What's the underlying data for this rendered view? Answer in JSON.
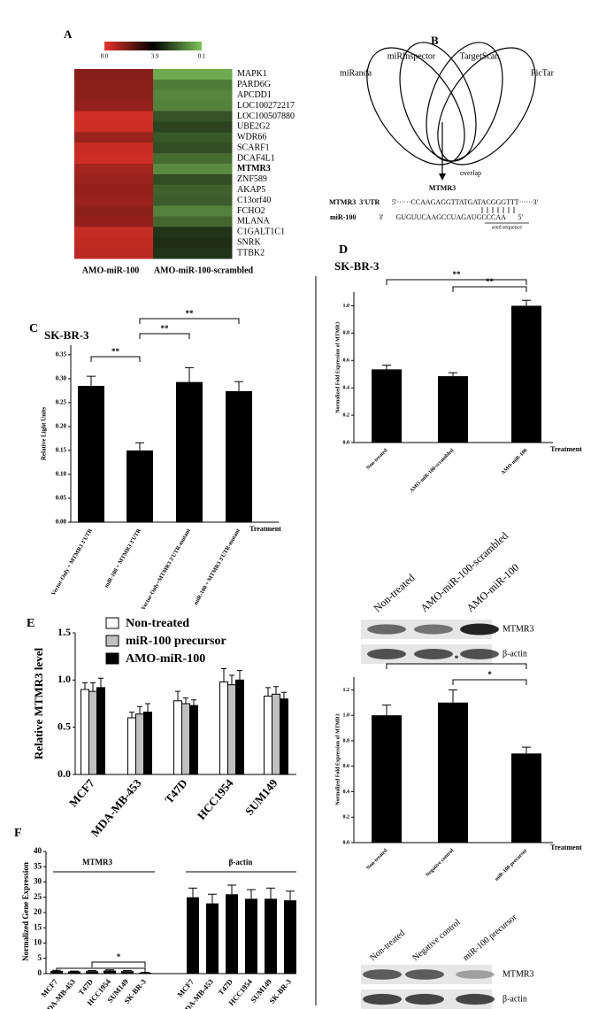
{
  "chart_data": [
    {
      "type": "heatmap",
      "panel": "A",
      "panel_color": "#000000",
      "colorbar_ticks": [
        {
          "value": 8,
          "label": "8.0"
        },
        3.9,
        0.1
      ],
      "colors": [
        "#e8332a",
        "#000000",
        "#7fc45a"
      ],
      "rows": [
        "MAPK1",
        "PARD6G",
        "APCDD1",
        "LOC100272217",
        "LOC100507880",
        "UBE2G2",
        "WDR66",
        "SCARF1",
        "DCAF4L1",
        "MTMR3",
        "ZNF589",
        "AKAP5",
        "C13orf40",
        "FCHO2",
        "MLANA",
        "C1GALT1C1",
        "SNRK",
        "TTBK2"
      ],
      "row_label_colors": [
        "#000000",
        "#000000",
        "#000000",
        "#000000",
        "#000000",
        "#000000",
        "#000000",
        "#000000",
        "#000000",
        "#e8401c",
        "#000000",
        "#000000",
        "#000000",
        "#000000",
        "#000000",
        "#000000",
        "#000000",
        "#000000"
      ],
      "columns": [
        "AMO-miR-100",
        "AMO-miR-100-scrambled"
      ],
      "values": [
        [
          6.3,
          0.6
        ],
        [
          6.4,
          1.5
        ],
        [
          6.4,
          1.3
        ],
        [
          6.5,
          1.4
        ],
        [
          7.6,
          2.3
        ],
        [
          7.5,
          2.6
        ],
        [
          6.6,
          2.2
        ],
        [
          7.4,
          2.4
        ],
        [
          7.5,
          1.8
        ],
        [
          6.8,
          1.2
        ],
        [
          6.6,
          2.4
        ],
        [
          6.5,
          2.0
        ],
        [
          6.6,
          2.1
        ],
        [
          6.4,
          1.4
        ],
        [
          6.5,
          1.9
        ],
        [
          7.4,
          2.9
        ],
        [
          7.3,
          3.0
        ],
        [
          7.2,
          2.9
        ]
      ]
    },
    {
      "type": "venn",
      "panel": "B",
      "panel_color": "#000000",
      "sets": [
        "miRanda",
        "miRInspector",
        "TargetScan",
        "PicTar"
      ],
      "intersection_label": "overlap",
      "target": "MTMR3",
      "target_name": "MTMR3  3'UTR",
      "target_seq": "5'······CCAAGAGGTTATGATACGGGTTT······3'",
      "mirna_name": "miR-100",
      "mirna_seq": "3'       GUGUUCAAGCCUAGAUGCCCAA       5'",
      "seed_label": "seed sequence"
    },
    {
      "type": "bar",
      "panel": "C",
      "panel_color": "#000000",
      "title": "SK-BR-3",
      "y_label": "Relative Light Units",
      "x_label": "Treatment",
      "categories": [
        "Vector-Only + MTMR3 3'UTR",
        "miR-100 + MTMR3 3'UTR",
        "Vector-Only+MTMR3 3'UTR-mutant",
        "miR-100 + MTMR3 3'UTR-mutant"
      ],
      "values": [
        0.285,
        0.15,
        0.293,
        0.274
      ],
      "errors": [
        0.02,
        0.016,
        0.03,
        0.02
      ],
      "color": "#000000",
      "ylim": [
        0,
        0.37
      ],
      "yticks": [
        {
          "value": 0,
          "label": "0.00"
        },
        {
          "value": 0.05,
          "label": "0.05"
        },
        {
          "value": 0.1,
          "label": "0.10"
        },
        {
          "value": 0.15,
          "label": "0.15"
        },
        {
          "value": 0.2,
          "label": "0.20"
        },
        {
          "value": 0.25,
          "label": "0.25"
        },
        {
          "value": 0.3,
          "label": "0.30"
        },
        {
          "value": 0.35,
          "label": "0.35"
        }
      ],
      "annotations": [
        "**",
        "**",
        "**"
      ]
    },
    {
      "type": "bar",
      "panel": "D",
      "panel_color": "#000000",
      "title": "SK-BR-3",
      "y_label": "Normalized Fold Expression of MTMR3",
      "x_label": "Treatment",
      "categories": [
        "Non-treated",
        "AMO-miR-100-scrambled",
        "AMO-miR-100"
      ],
      "values": [
        0.535,
        0.485,
        1.0
      ],
      "errors": [
        0.03,
        0.025,
        0.04
      ],
      "color": "#000000",
      "ylim": [
        0,
        1.1
      ],
      "yticks": [
        {
          "value": 0,
          "label": "0.0"
        },
        0.2,
        0.4,
        0.6,
        0.8,
        {
          "value": 1,
          "label": "1.0"
        }
      ],
      "annotations": [
        "**",
        "**"
      ],
      "blot": {
        "lanes": [
          "Non-treated",
          "AMO-miR-100-scrambled",
          "AMO-miR-100"
        ],
        "bands": [
          "MTMR3",
          "β-actin"
        ]
      }
    },
    {
      "type": "bar",
      "y_label": "Normalized Fold Expression of MTMR3",
      "x_label": "Treatment",
      "categories": [
        "Non-treated",
        "Negative control",
        "miR-100 precursor"
      ],
      "values": [
        1.0,
        1.1,
        0.7
      ],
      "errors": [
        0.08,
        0.1,
        0.05
      ],
      "color": "#000000",
      "ylim": [
        0,
        1.3
      ],
      "yticks": [
        {
          "value": 0,
          "label": "0.0"
        },
        0.2,
        0.4,
        0.6,
        0.8,
        {
          "value": 1,
          "label": "1.0"
        },
        1.2
      ],
      "annotations": [
        "*",
        "*"
      ],
      "blot": {
        "lanes": [
          "Non-treated",
          "Negative control",
          "miR-100 precursor"
        ],
        "bands": [
          "MTMR3",
          "β-actin"
        ]
      }
    },
    {
      "type": "grouped_bar",
      "panel": "E",
      "panel_color": "#e8521c",
      "y_label": "Relative MTMR3 level",
      "categories": [
        "MCF7",
        "MDA-MB-453",
        "T47D",
        "HCC1954",
        "SUM149"
      ],
      "series": [
        {
          "name": "Non-treated",
          "color": "#ffffff",
          "values": [
            0.9,
            0.6,
            0.78,
            0.98,
            0.83
          ],
          "errors": [
            0.07,
            0.06,
            0.1,
            0.14,
            0.09
          ]
        },
        {
          "name": "miR-100 precursor",
          "color": "#c0c0c0",
          "values": [
            0.88,
            0.64,
            0.75,
            0.95,
            0.85
          ],
          "errors": [
            0.09,
            0.08,
            0.06,
            0.1,
            0.08
          ]
        },
        {
          "name": "AMO-miR-100",
          "color": "#000000",
          "values": [
            0.92,
            0.66,
            0.73,
            1.0,
            0.8
          ],
          "errors": [
            0.1,
            0.09,
            0.06,
            0.1,
            0.07
          ]
        }
      ],
      "ylim": [
        0,
        1.5
      ],
      "yticks": [
        {
          "value": 0,
          "label": "0.0"
        },
        0.5,
        {
          "value": 1,
          "label": "1.0"
        },
        1.5
      ]
    },
    {
      "type": "bar",
      "panel": "F",
      "panel_color": "#e8521c",
      "y_label": "Normalized Gene Expression",
      "categories": [
        "MCF7",
        "MDA-MB-453",
        "T47D",
        "HCC1954",
        "SUM149",
        "SK-BR-3",
        "MCF7",
        "MDA-MB-453",
        "T47D",
        "HCC1954",
        "SUM149",
        "SK-BR-3"
      ],
      "group_labels": [
        "MTMR3",
        "β-actin"
      ],
      "values": [
        0.9,
        0.7,
        0.8,
        1.0,
        0.8,
        0.3,
        25,
        23,
        26,
        24.5,
        24.5,
        24
      ],
      "errors": [
        0.2,
        0.15,
        0.2,
        0.25,
        0.2,
        0.1,
        3,
        3,
        3,
        3,
        3.5,
        3
      ],
      "color": "#000000",
      "ylim": [
        0,
        40
      ],
      "yticks": [
        0,
        5,
        10,
        15,
        20,
        25,
        30,
        35,
        40
      ],
      "annotations": [
        "*"
      ]
    }
  ]
}
